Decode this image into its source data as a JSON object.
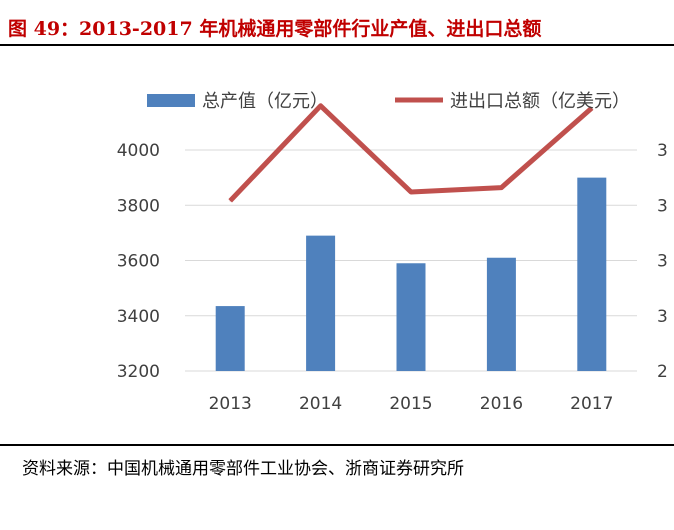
{
  "header": {
    "title": "图 49：2013-2017 年机械通用零部件行业产值、进出口总额"
  },
  "footer": {
    "source": "资料来源：中国机械通用零部件工业协会、浙商证券研究所"
  },
  "colors": {
    "bar": "#4f81bd",
    "line": "#c0504d",
    "title": "#c00000",
    "grid": "#d9d9d9"
  },
  "chart_data": {
    "type": "bar",
    "title": "",
    "xlabel": "",
    "ylabel": "",
    "categories": [
      "2013",
      "2014",
      "2015",
      "2016",
      "2017"
    ],
    "legend_position": "top",
    "grid": true,
    "left_axis": {
      "ylim": [
        3200,
        4000
      ],
      "ticks": [
        "3200",
        "3400",
        "3600",
        "3800",
        "4000"
      ]
    },
    "right_axis": {
      "ylim": [
        2,
        3
      ],
      "tick_labels": [
        "2",
        "3",
        "3",
        "3",
        "3"
      ]
    },
    "series": [
      {
        "name": "总产值（亿元）",
        "type": "bar",
        "axis": "left",
        "values": [
          3435,
          3690,
          3590,
          3610,
          3900
        ]
      },
      {
        "name": "进出口总额（亿美元）",
        "type": "line",
        "axis": "right",
        "values": [
          2.77,
          3.2,
          2.81,
          2.83,
          3.19
        ]
      }
    ]
  }
}
